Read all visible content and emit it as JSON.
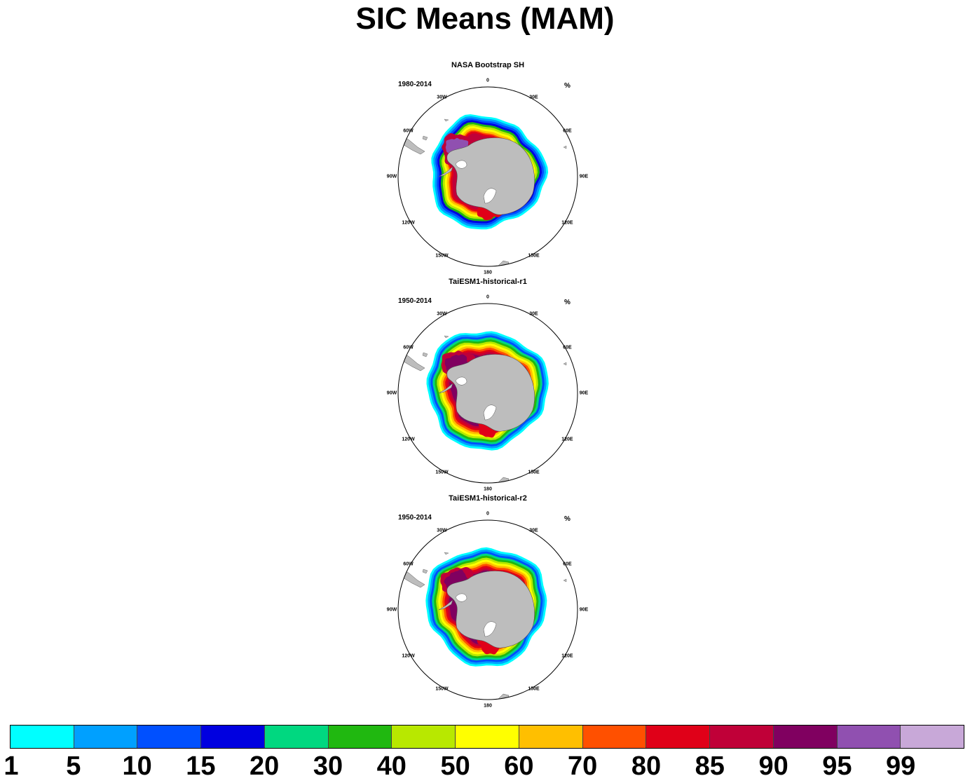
{
  "title": "SIC Means (MAM)",
  "unit": "%",
  "longitude_labels": [
    "0",
    "30E",
    "60E",
    "90E",
    "120E",
    "150E",
    "180",
    "150W",
    "120W",
    "90W",
    "60W",
    "30W"
  ],
  "panels": [
    {
      "id": "obs",
      "title": "NASA Bootstrap SH",
      "period": "1980-2014"
    },
    {
      "id": "r1",
      "title": "TaiESM1-historical-r1",
      "period": "1950-2014"
    },
    {
      "id": "r2",
      "title": "TaiESM1-historical-r2",
      "period": "1950-2014"
    }
  ],
  "colorbar": {
    "labels": [
      "1",
      "5",
      "10",
      "15",
      "20",
      "30",
      "40",
      "50",
      "60",
      "70",
      "80",
      "85",
      "90",
      "95",
      "99"
    ],
    "colors": [
      "#00ffff",
      "#00a0ff",
      "#0050ff",
      "#0000e0",
      "#00d880",
      "#20b810",
      "#b8e800",
      "#ffff00",
      "#ffbf00",
      "#ff5000",
      "#e00018",
      "#c00038",
      "#800060",
      "#9050b0",
      "#c8a8d8"
    ]
  }
}
